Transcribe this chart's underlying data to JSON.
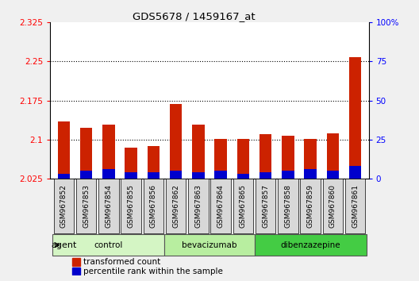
{
  "title": "GDS5678 / 1459167_at",
  "samples": [
    "GSM967852",
    "GSM967853",
    "GSM967854",
    "GSM967855",
    "GSM967856",
    "GSM967862",
    "GSM967863",
    "GSM967864",
    "GSM967865",
    "GSM967857",
    "GSM967858",
    "GSM967859",
    "GSM967860",
    "GSM967861"
  ],
  "transformed_count": [
    2.135,
    2.123,
    2.128,
    2.085,
    2.088,
    2.168,
    2.128,
    2.102,
    2.102,
    2.11,
    2.107,
    2.102,
    2.112,
    2.258
  ],
  "percentile_rank": [
    3,
    5,
    6,
    4,
    4,
    5,
    4,
    5,
    3,
    4,
    5,
    6,
    5,
    8
  ],
  "groups": [
    {
      "label": "control",
      "start": 0,
      "end": 5,
      "color": "#d4f5c4"
    },
    {
      "label": "bevacizumab",
      "start": 5,
      "end": 9,
      "color": "#b8eea0"
    },
    {
      "label": "dibenzazepine",
      "start": 9,
      "end": 14,
      "color": "#44cc44"
    }
  ],
  "ylim_left": [
    2.025,
    2.325
  ],
  "ylim_right": [
    0,
    100
  ],
  "yticks_left": [
    2.025,
    2.1,
    2.175,
    2.25,
    2.325
  ],
  "yticks_right": [
    0,
    25,
    50,
    75,
    100
  ],
  "bar_color_red": "#cc2200",
  "bar_color_blue": "#0000cc",
  "bar_width": 0.55,
  "baseline": 2.025,
  "plot_bg": "#ffffff"
}
